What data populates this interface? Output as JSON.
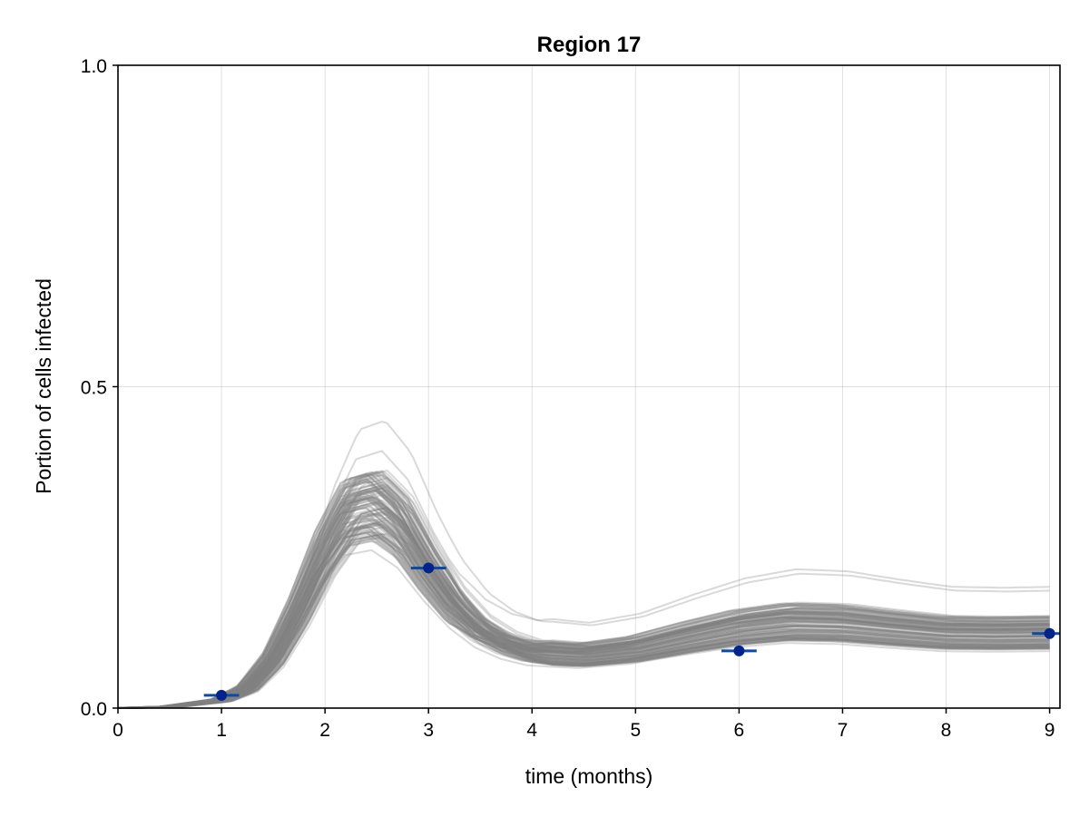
{
  "chart_data": {
    "type": "line",
    "title": "Region 17",
    "xlabel": "time (months)",
    "ylabel": "Portion of cells infected",
    "xlim": [
      0,
      9.1
    ],
    "ylim": [
      0,
      1.0
    ],
    "x_ticks": [
      0,
      1,
      2,
      3,
      4,
      5,
      6,
      7,
      8,
      9
    ],
    "x_tick_labels": [
      "0",
      "1",
      "2",
      "3",
      "4",
      "5",
      "6",
      "7",
      "8",
      "9"
    ],
    "y_ticks": [
      0,
      0.5,
      1.0
    ],
    "y_tick_labels": [
      "0.0",
      "0.5",
      "1.0"
    ],
    "grid": true,
    "legend": "none",
    "simulation_band": {
      "description_count": 120,
      "color": "#808080",
      "representative_curve": {
        "x": [
          0,
          0.5,
          1,
          1.25,
          1.5,
          1.75,
          2,
          2.25,
          2.5,
          2.75,
          3,
          3.25,
          3.5,
          3.75,
          4,
          4.5,
          5,
          5.5,
          6,
          6.5,
          7,
          7.5,
          8,
          8.5,
          9
        ],
        "y": [
          0,
          0.002,
          0.012,
          0.03,
          0.075,
          0.15,
          0.24,
          0.305,
          0.315,
          0.28,
          0.215,
          0.16,
          0.122,
          0.1,
          0.088,
          0.083,
          0.092,
          0.11,
          0.126,
          0.135,
          0.133,
          0.125,
          0.118,
          0.117,
          0.118
        ]
      }
    },
    "observations": {
      "color": "#00238c",
      "x": [
        1,
        3,
        6,
        9
      ],
      "y": [
        0.02,
        0.218,
        0.089,
        0.116
      ],
      "x_error": [
        0.17,
        0.17,
        0.17,
        0.17
      ]
    }
  }
}
